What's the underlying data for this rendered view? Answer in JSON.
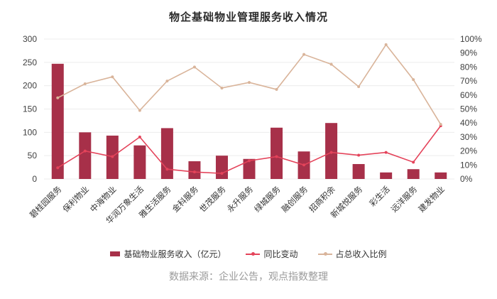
{
  "page": {
    "title": "物企基础物业管理服务收入情况"
  },
  "footer": {
    "source_text": "数据来源：企业公告，观点指数整理"
  },
  "colors": {
    "bar": "#A73049",
    "yoy_line": "#E4435A",
    "share_line": "#D9B49A",
    "grid": "#ECECEC",
    "axis_text": "#404040",
    "category_text": "#333333",
    "title_text": "#2B2B2B",
    "source_text": "#9B9B9B"
  },
  "chart_data": {
    "type": "bar",
    "subtype": "combo-bar-line-dual-axis",
    "title": "物企基础物业管理服务收入情况",
    "categories": [
      "碧桂园服务",
      "保利物业",
      "中海物业",
      "华润万象生活",
      "雅生活服务",
      "金科服务",
      "世茂服务",
      "永升服务",
      "绿城服务",
      "融创服务",
      "招商积余",
      "新城悦服务",
      "彩生活",
      "远洋服务",
      "建发物业"
    ],
    "series": [
      {
        "name": "基础物业服务收入（亿元）",
        "kind": "bar",
        "axis": "left",
        "color": "#A73049",
        "values": [
          247,
          100,
          93,
          72,
          109,
          38,
          50,
          43,
          110,
          59,
          120,
          32,
          14,
          21,
          14
        ]
      },
      {
        "name": "同比变动",
        "kind": "line",
        "axis": "right",
        "color": "#E4435A",
        "values": [
          8,
          20,
          16,
          30,
          7,
          5,
          4,
          13,
          16,
          10,
          19,
          17,
          19,
          12,
          38
        ]
      },
      {
        "name": "占总收入比例",
        "kind": "line",
        "axis": "right",
        "color": "#D9B49A",
        "values": [
          58,
          68,
          73,
          49,
          70,
          80,
          65,
          69,
          64,
          89,
          82,
          66,
          96,
          71,
          39
        ]
      }
    ],
    "left_axis": {
      "min": 0,
      "max": 300,
      "step": 50,
      "tick_labels": [
        "0",
        "50",
        "100",
        "150",
        "200",
        "250",
        "300"
      ]
    },
    "right_axis": {
      "min": 0,
      "max": 100,
      "step": 10,
      "tick_labels": [
        "0%",
        "10%",
        "20%",
        "30%",
        "40%",
        "50%",
        "60%",
        "70%",
        "80%",
        "90%",
        "100%"
      ]
    },
    "grid": true,
    "legend_position": "bottom",
    "xlabel": "",
    "ylabel": ""
  }
}
